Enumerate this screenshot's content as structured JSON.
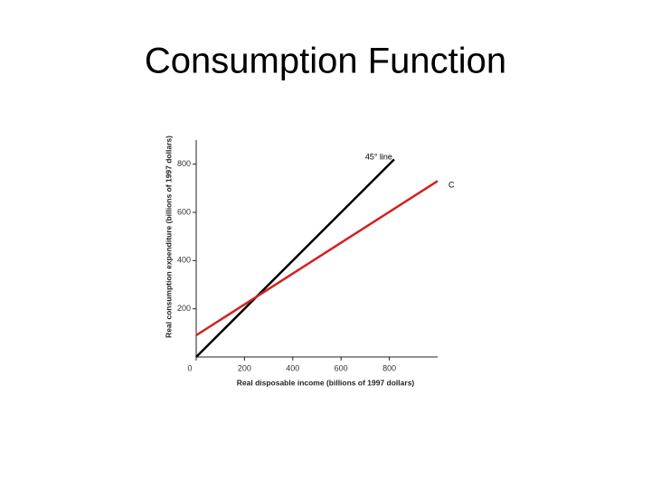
{
  "chart_data": {
    "type": "line",
    "title": "Consumption Function",
    "xlabel": "Real disposable income (billions of 1997 dollars)",
    "ylabel": "Real consumption expenditure (billions of 1997 dollars)",
    "xlim": [
      0,
      1000
    ],
    "ylim": [
      0,
      900
    ],
    "xticks": [
      0,
      200,
      400,
      600,
      800
    ],
    "yticks": [
      200,
      400,
      600,
      800
    ],
    "series": [
      {
        "name": "45° line",
        "color": "#000000",
        "x": [
          0,
          820
        ],
        "values": [
          0,
          820
        ]
      },
      {
        "name": "C",
        "color": "#d42020",
        "x": [
          0,
          1000
        ],
        "values": [
          90,
          730
        ]
      }
    ]
  }
}
